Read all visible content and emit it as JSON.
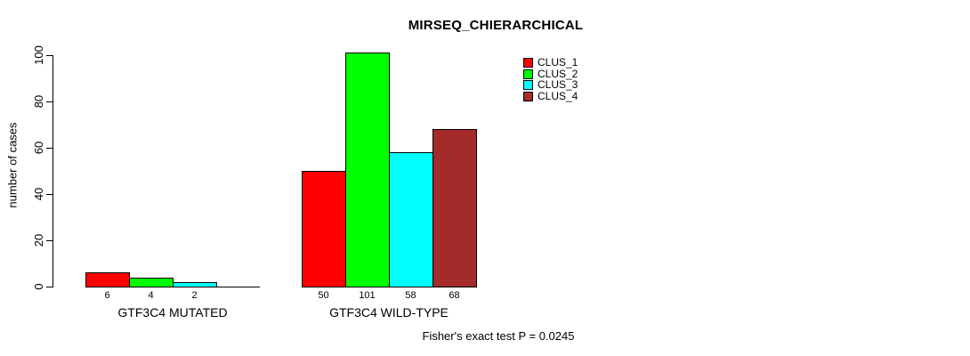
{
  "title": "MIRSEQ_CHIERARCHICAL",
  "footer": "Fisher's exact test P = 0.0245",
  "chart_data": {
    "type": "bar",
    "title": "MIRSEQ_CHIERARCHICAL",
    "ylabel": "number of cases",
    "xlabel": "",
    "ylim": [
      0,
      100
    ],
    "yticks": [
      0,
      20,
      40,
      60,
      80,
      100
    ],
    "grid": false,
    "legend_position": "top-right",
    "categories": [
      "GTF3C4 MUTATED",
      "GTF3C4 WILD-TYPE"
    ],
    "series": [
      {
        "name": "CLUS_1",
        "color": "#ff0000",
        "values": [
          6,
          50
        ]
      },
      {
        "name": "CLUS_2",
        "color": "#00ff00",
        "values": [
          4,
          101
        ]
      },
      {
        "name": "CLUS_3",
        "color": "#00ffff",
        "values": [
          2,
          58
        ]
      },
      {
        "name": "CLUS_4",
        "color": "#a52a2a",
        "values": [
          0,
          68
        ]
      }
    ],
    "bar_value_labels": [
      [
        "6",
        "4",
        "2",
        ""
      ],
      [
        "50",
        "101",
        "58",
        "68"
      ]
    ],
    "annotation": "Fisher's exact test P = 0.0245"
  }
}
